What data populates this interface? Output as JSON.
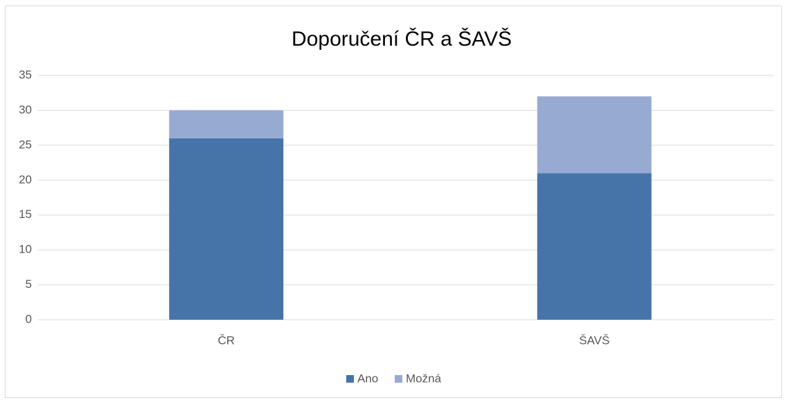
{
  "chart_data": {
    "type": "stacked-bar",
    "title": "Doporučení ČR a ŠAVŠ",
    "categories": [
      "ČR",
      "ŠAVŠ"
    ],
    "series": [
      {
        "name": "Ano",
        "color": "#4674a9",
        "values": [
          26,
          21
        ]
      },
      {
        "name": "Možná",
        "color": "#97abd2",
        "values": [
          4,
          11
        ]
      }
    ],
    "ylim": [
      0,
      35
    ],
    "yticks": [
      0,
      5,
      10,
      15,
      20,
      25,
      30,
      35
    ],
    "grid": true,
    "legend": "bottom"
  }
}
